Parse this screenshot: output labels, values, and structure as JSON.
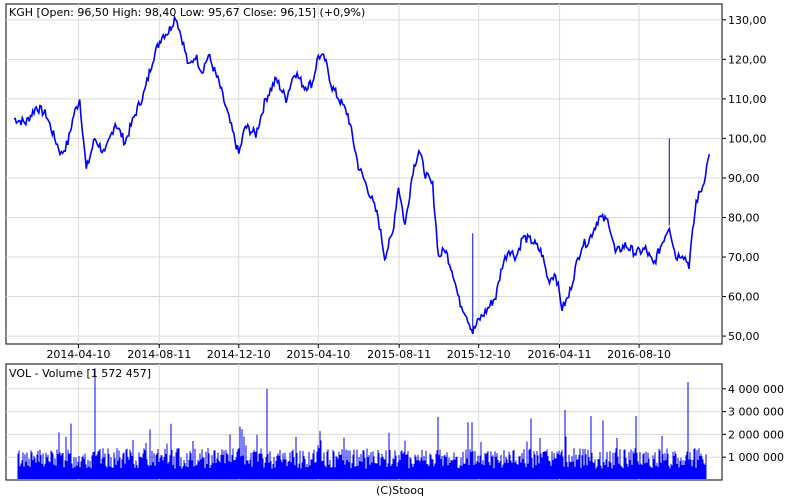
{
  "chart_data": [
    {
      "type": "line",
      "header": "KGH [Open: 96,50  High: 98,40  Low: 95,67  Close: 96,15] (+0,9%)",
      "title": "",
      "xlabel": "",
      "ylabel": "",
      "ylim": [
        48,
        134
      ],
      "y_ticks": [
        "50,00",
        "60,00",
        "70,00",
        "80,00",
        "90,00",
        "100,00",
        "110,00",
        "120,00",
        "130,00"
      ],
      "y_tick_values": [
        50,
        60,
        70,
        80,
        90,
        100,
        110,
        120,
        130
      ],
      "x_ticks": [
        "2014-04-10",
        "2014-08-11",
        "2014-12-10",
        "2015-04-10",
        "2015-08-11",
        "2015-12-10",
        "2016-04-11",
        "2016-08-10"
      ],
      "xlim": [
        "2014-01-02",
        "2016-11-29"
      ],
      "grid": true,
      "color": "#0000ff",
      "series": [
        {
          "x": [
            "2014-01-02",
            "2014-01-20",
            "2014-02-05",
            "2014-02-20",
            "2014-03-05",
            "2014-03-15",
            "2014-03-25",
            "2014-04-03",
            "2014-04-12",
            "2014-04-22",
            "2014-05-05",
            "2014-05-20",
            "2014-06-05",
            "2014-06-20",
            "2014-07-05",
            "2014-07-20",
            "2014-08-01",
            "2014-08-15",
            "2014-08-25",
            "2014-09-05",
            "2014-09-15",
            "2014-09-25",
            "2014-10-05",
            "2014-10-15",
            "2014-10-25",
            "2014-11-10",
            "2014-11-25",
            "2014-12-10",
            "2014-12-20",
            "2015-01-05",
            "2015-01-20",
            "2015-02-05",
            "2015-02-20",
            "2015-03-05",
            "2015-03-20",
            "2015-04-01",
            "2015-04-10",
            "2015-04-20",
            "2015-05-01",
            "2015-05-15",
            "2015-05-25",
            "2015-06-10",
            "2015-06-25",
            "2015-07-10",
            "2015-07-20",
            "2015-08-01",
            "2015-08-10",
            "2015-08-20",
            "2015-09-01",
            "2015-09-10",
            "2015-09-20",
            "2015-10-01",
            "2015-10-10",
            "2015-10-20",
            "2015-11-01",
            "2015-11-10",
            "2015-11-20",
            "2015-12-01",
            "2015-12-10",
            "2015-12-20",
            "2016-01-05",
            "2016-01-15",
            "2016-01-25",
            "2016-02-05",
            "2016-02-15",
            "2016-03-01",
            "2016-03-15",
            "2016-03-25",
            "2016-04-05",
            "2016-04-15",
            "2016-04-25",
            "2016-05-05",
            "2016-05-15",
            "2016-05-25",
            "2016-06-10",
            "2016-06-25",
            "2016-07-05",
            "2016-07-20",
            "2016-08-05",
            "2016-08-20",
            "2016-09-01",
            "2016-09-15",
            "2016-09-25",
            "2016-10-05",
            "2016-10-15",
            "2016-10-25",
            "2016-11-05",
            "2016-11-15",
            "2016-11-25"
          ],
          "y": [
            105,
            104,
            108,
            106,
            100,
            96,
            99,
            106,
            110,
            92,
            100,
            96,
            104,
            99,
            106,
            112,
            120,
            126,
            127,
            131,
            125,
            118,
            121,
            117,
            121,
            114,
            105,
            96,
            103,
            101,
            110,
            115,
            110,
            117,
            113,
            114,
            121,
            120,
            113,
            109,
            106,
            93,
            87,
            80,
            70,
            76,
            88,
            78,
            92,
            97,
            91,
            88,
            70,
            72,
            66,
            59,
            56,
            51,
            54,
            56,
            60,
            68,
            72,
            70,
            75,
            74,
            71,
            64,
            66,
            57,
            60,
            67,
            73,
            74,
            80,
            79,
            71,
            73,
            71,
            72,
            68,
            74,
            78,
            70,
            71,
            68,
            84,
            88,
            96
          ]
        }
      ]
    },
    {
      "type": "bar",
      "header": "VOL - Volume [1 572 457]",
      "title": "",
      "xlabel": "",
      "ylabel": "",
      "ylim": [
        0,
        5000000
      ],
      "y_ticks": [
        "1 000 000",
        "2 000 000",
        "3 000 000",
        "4 000 000"
      ],
      "y_tick_values": [
        1000000,
        2000000,
        3000000,
        4000000
      ],
      "grid": true,
      "color": "#0000ff",
      "last_value": 1572457
    }
  ],
  "footer": "(C)Stooq"
}
